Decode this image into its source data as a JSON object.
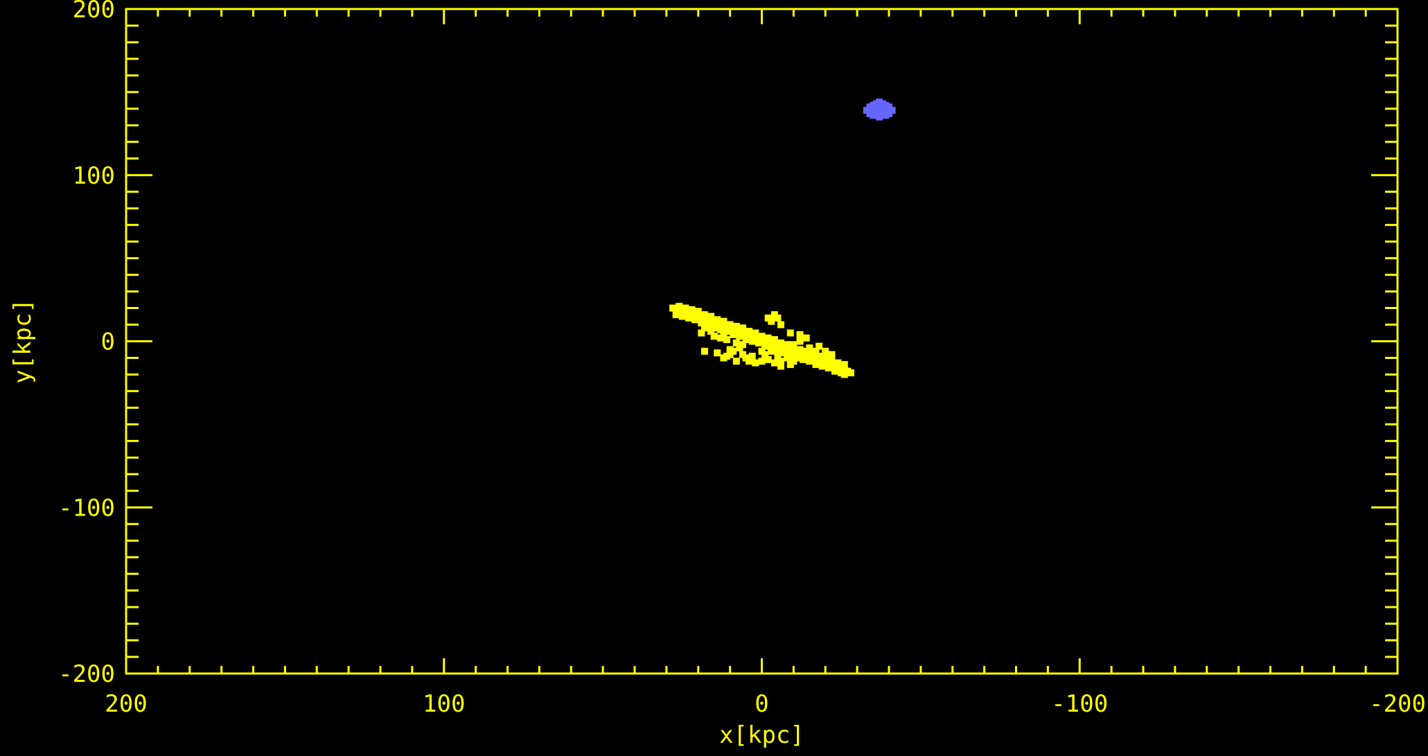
{
  "colors": {
    "background": "#000000",
    "axes": "#ffff00",
    "disk_particles": "#ffff00",
    "satellite_particles": "#6666ff"
  },
  "chart_data": {
    "type": "scatter",
    "title": "",
    "xlabel": "x[kpc]",
    "ylabel": "y[kpc]",
    "xlim": [
      200,
      -200
    ],
    "ylim": [
      -200,
      200
    ],
    "x_reversed": true,
    "grid": false,
    "legend": "none",
    "x_ticks": [
      {
        "value": 200,
        "label": "200"
      },
      {
        "value": 100,
        "label": "100"
      },
      {
        "value": 0,
        "label": "0"
      },
      {
        "value": -100,
        "label": "-100"
      },
      {
        "value": -200,
        "label": "-200"
      }
    ],
    "y_ticks": [
      {
        "value": 200,
        "label": "200"
      },
      {
        "value": 100,
        "label": "100"
      },
      {
        "value": 0,
        "label": "0"
      },
      {
        "value": -100,
        "label": "-100"
      },
      {
        "value": -200,
        "label": "-200"
      }
    ],
    "x_minor_step": 10,
    "y_minor_step": 10,
    "series": [
      {
        "color": "#ffff00",
        "shape": "elongated tilted ellipse",
        "center": [
          0,
          0
        ],
        "extent_x": [
          -28,
          28
        ],
        "extent_y": [
          -22,
          22
        ],
        "points": [
          [
            28,
            20
          ],
          [
            27,
            19
          ],
          [
            26,
            19
          ],
          [
            25,
            18
          ],
          [
            24,
            17
          ],
          [
            22,
            16
          ],
          [
            20,
            15
          ],
          [
            18,
            13
          ],
          [
            16,
            12
          ],
          [
            14,
            11
          ],
          [
            12,
            9
          ],
          [
            10,
            8
          ],
          [
            8,
            6
          ],
          [
            6,
            5
          ],
          [
            4,
            3
          ],
          [
            2,
            2
          ],
          [
            0,
            0
          ],
          [
            -2,
            -1
          ],
          [
            -4,
            -2
          ],
          [
            -6,
            -4
          ],
          [
            -8,
            -5
          ],
          [
            -10,
            -6
          ],
          [
            -12,
            -8
          ],
          [
            -14,
            -9
          ],
          [
            -16,
            -11
          ],
          [
            -18,
            -12
          ],
          [
            -20,
            -13
          ],
          [
            -22,
            -14
          ],
          [
            -24,
            -15
          ],
          [
            -26,
            -17
          ],
          [
            -27,
            -18
          ],
          [
            -28,
            -19
          ],
          [
            27,
            16
          ],
          [
            25,
            15
          ],
          [
            23,
            14
          ],
          [
            21,
            13
          ],
          [
            19,
            11
          ],
          [
            17,
            10
          ],
          [
            15,
            8
          ],
          [
            13,
            7
          ],
          [
            11,
            6
          ],
          [
            9,
            4
          ],
          [
            7,
            3
          ],
          [
            5,
            1
          ],
          [
            3,
            0
          ],
          [
            1,
            -1
          ],
          [
            -1,
            -3
          ],
          [
            -3,
            -4
          ],
          [
            -5,
            -5
          ],
          [
            -7,
            -7
          ],
          [
            -9,
            -8
          ],
          [
            -11,
            -10
          ],
          [
            -13,
            -11
          ],
          [
            -15,
            -12
          ],
          [
            -17,
            -14
          ],
          [
            -19,
            -15
          ],
          [
            -21,
            -16
          ],
          [
            -23,
            -18
          ],
          [
            -25,
            -19
          ],
          [
            -26,
            -20
          ],
          [
            26,
            21
          ],
          [
            24,
            20
          ],
          [
            22,
            19
          ],
          [
            20,
            18
          ],
          [
            18,
            16
          ],
          [
            16,
            15
          ],
          [
            14,
            13
          ],
          [
            12,
            12
          ],
          [
            10,
            10
          ],
          [
            8,
            9
          ],
          [
            6,
            8
          ],
          [
            4,
            6
          ],
          [
            2,
            5
          ],
          [
            0,
            3
          ],
          [
            -2,
            2
          ],
          [
            -4,
            1
          ],
          [
            -6,
            -1
          ],
          [
            -8,
            -2
          ],
          [
            -10,
            -3
          ],
          [
            -12,
            -5
          ],
          [
            -14,
            -6
          ],
          [
            -16,
            -7
          ],
          [
            -18,
            -9
          ],
          [
            -20,
            -10
          ],
          [
            -22,
            -11
          ],
          [
            -24,
            -13
          ],
          [
            -26,
            -14
          ],
          [
            -4,
            16
          ],
          [
            -5,
            14
          ],
          [
            -2,
            14
          ],
          [
            -3,
            12
          ],
          [
            -6,
            10
          ],
          [
            7,
            -4
          ],
          [
            9,
            -6
          ],
          [
            10,
            -8
          ],
          [
            12,
            -10
          ],
          [
            14,
            -7
          ],
          [
            11,
            -9
          ],
          [
            6,
            -8
          ],
          [
            5,
            -10
          ],
          [
            3,
            -9
          ],
          [
            -1,
            -8
          ],
          [
            -3,
            -6
          ],
          [
            -5,
            -9
          ],
          [
            -6,
            -12
          ],
          [
            -8,
            -10
          ],
          [
            -9,
            -14
          ],
          [
            -10,
            -12
          ],
          [
            -6,
            -15
          ],
          [
            -4,
            -13
          ],
          [
            -2,
            -11
          ],
          [
            0,
            -12
          ],
          [
            2,
            -13
          ],
          [
            4,
            -12
          ],
          [
            8,
            -12
          ],
          [
            18,
            -6
          ],
          [
            10,
            -5
          ],
          [
            -10,
            -2
          ],
          [
            -12,
            0
          ],
          [
            -14,
            2
          ],
          [
            -15,
            -4
          ],
          [
            -17,
            -6
          ],
          [
            -18,
            -3
          ],
          [
            -20,
            -6
          ],
          [
            -22,
            -8
          ],
          [
            -9,
            5
          ],
          [
            -12,
            4
          ],
          [
            15,
            3
          ],
          [
            13,
            2
          ],
          [
            11,
            1
          ],
          [
            16,
            6
          ],
          [
            18,
            8
          ],
          [
            19,
            5
          ],
          [
            12,
            4
          ],
          [
            8,
            -1
          ],
          [
            6,
            -2
          ],
          [
            0,
            -6
          ]
        ]
      },
      {
        "color": "#6666ff",
        "shape": "small compact blob",
        "center": [
          -37,
          139
        ],
        "extent_x": [
          -43,
          -31
        ],
        "extent_y": [
          133,
          145
        ],
        "points": [
          [
            -37,
            139
          ],
          [
            -33,
            139
          ],
          [
            -34,
            141
          ],
          [
            -35,
            142
          ],
          [
            -36,
            143
          ],
          [
            -37,
            144
          ],
          [
            -38,
            143
          ],
          [
            -39,
            142
          ],
          [
            -40,
            141
          ],
          [
            -41,
            139
          ],
          [
            -40,
            137
          ],
          [
            -39,
            136
          ],
          [
            -37,
            135
          ],
          [
            -35,
            136
          ],
          [
            -34,
            137
          ],
          [
            -36,
            140
          ],
          [
            -38,
            139
          ],
          [
            -39,
            138
          ],
          [
            -36,
            137
          ],
          [
            -38,
            141
          ]
        ]
      }
    ]
  }
}
